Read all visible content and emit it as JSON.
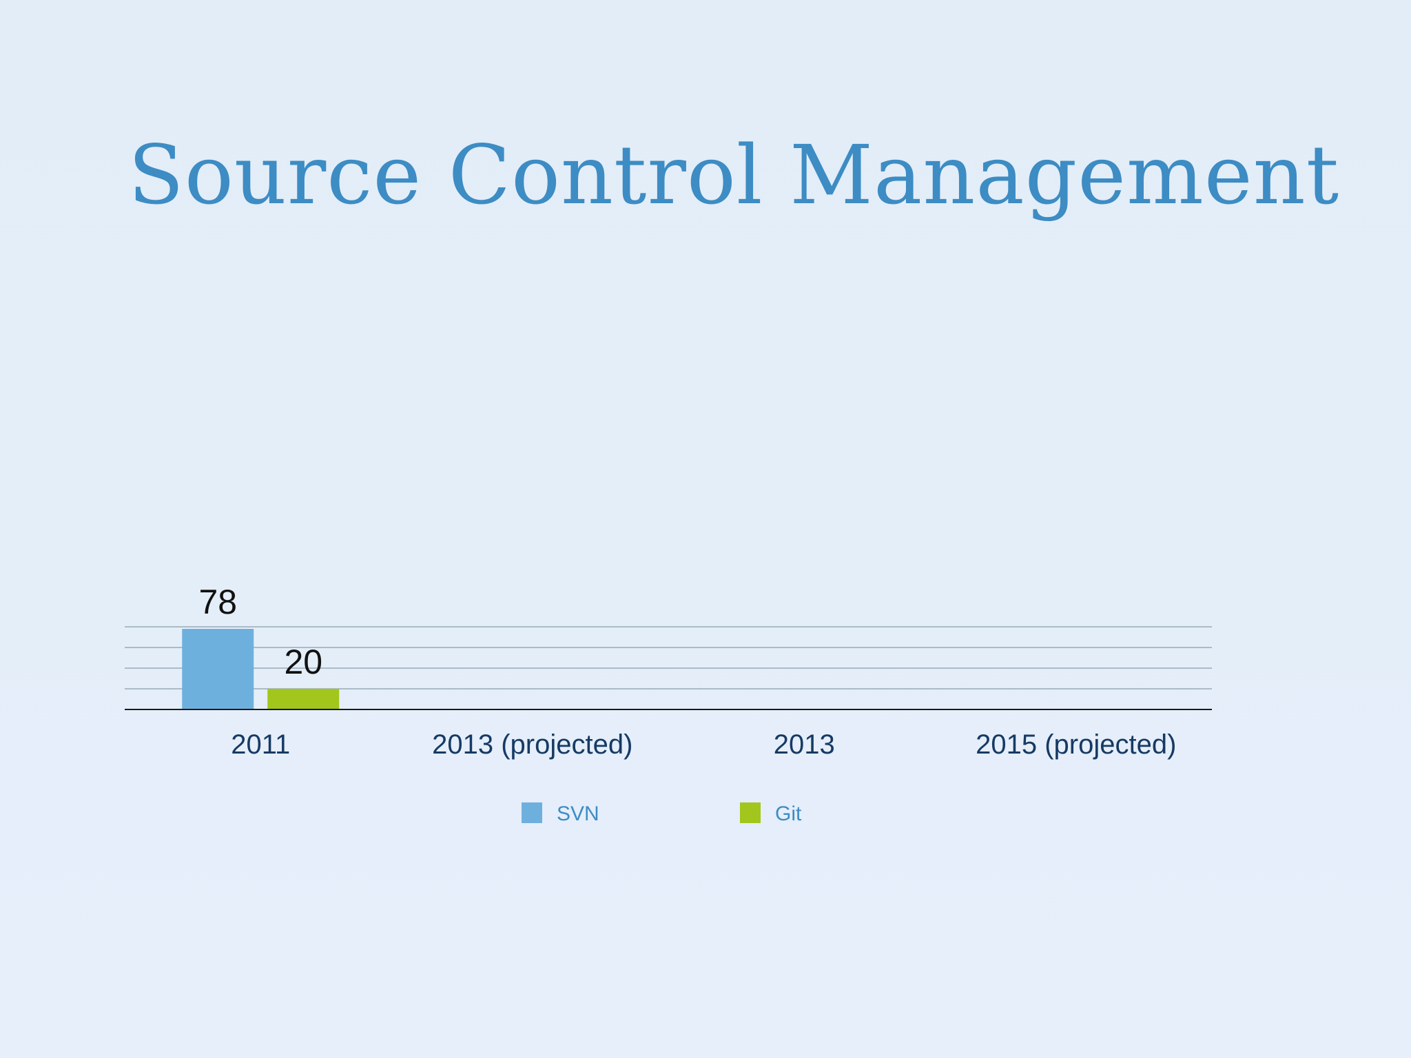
{
  "slide": {
    "title": "Source Control Management"
  },
  "chart_data": {
    "type": "bar",
    "title": "Source Control Management",
    "categories": [
      "2011",
      "2013 (projected)",
      "2013",
      "2015 (projected)"
    ],
    "series": [
      {
        "name": "SVN",
        "color": "#6eb0dd",
        "values": [
          78,
          null,
          null,
          null
        ]
      },
      {
        "name": "Git",
        "color": "#a2c61c",
        "values": [
          20,
          null,
          null,
          null
        ]
      }
    ],
    "data_labels": true,
    "ylim": [
      0,
      80
    ],
    "grid": true,
    "legend_placement": "bottom-center",
    "colors": {
      "title": "#3d8cc4",
      "category_label": "#163a64",
      "legend_label": "#3d8cc4",
      "data_label": "#111111",
      "gridline": "#9aa8b6",
      "axis": "#1a1a1a"
    }
  }
}
